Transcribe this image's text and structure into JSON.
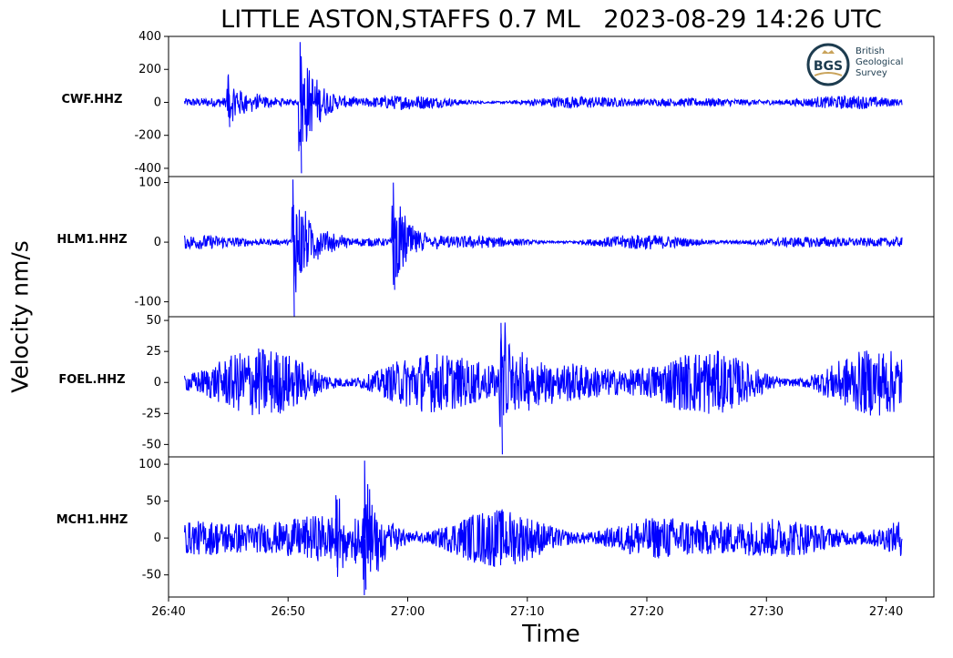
{
  "title": "LITTLE ASTON,STAFFS 0.7 ML   2023-08-29 14:26 UTC",
  "logo": {
    "initials": "BGS",
    "lines": [
      "British",
      "Geological",
      "Survey"
    ]
  },
  "chart_data": [
    {
      "type": "line",
      "channel": "CWF.HHZ",
      "color": "#0000ff",
      "ylim": [
        -450,
        400
      ],
      "yticks": [
        400,
        200,
        0,
        -200,
        -400
      ],
      "noise_amp": 28,
      "events": [
        {
          "t_min": 26.75,
          "peak": 170,
          "neg": -150
        },
        {
          "t_min": 26.85,
          "peak": 365,
          "neg": -430
        }
      ]
    },
    {
      "type": "line",
      "channel": "HLM1.HHZ",
      "color": "#0000ff",
      "ylim": [
        -125,
        110
      ],
      "yticks": [
        100,
        0,
        -100
      ],
      "noise_amp": 8,
      "events": [
        {
          "t_min": 26.84,
          "peak": 105,
          "neg": -125
        },
        {
          "t_min": 26.98,
          "peak": 100,
          "neg": -80
        }
      ]
    },
    {
      "type": "line",
      "channel": "FOEL.HHZ",
      "color": "#0000ff",
      "ylim": [
        -60,
        53
      ],
      "yticks": [
        50,
        25,
        0,
        -25,
        -50
      ],
      "noise_amp": 18,
      "events": [
        {
          "t_min": 27.13,
          "peak": 48,
          "neg": -58
        }
      ]
    },
    {
      "type": "line",
      "channel": "MCH1.HHZ",
      "color": "#0000ff",
      "ylim": [
        -80,
        110
      ],
      "yticks": [
        100,
        50,
        0,
        -50
      ],
      "noise_amp": 25,
      "events": [
        {
          "t_min": 26.9,
          "peak": 58,
          "neg": -40
        },
        {
          "t_min": 26.94,
          "peak": 105,
          "neg": -70
        }
      ]
    }
  ],
  "x_axis": {
    "xlim": [
      26.6667,
      27.7333
    ],
    "start": 26.6889,
    "end": 27.6889,
    "ticks": [
      {
        "value": 26.6667,
        "label": "26:40"
      },
      {
        "value": 26.8333,
        "label": "26:50"
      },
      {
        "value": 27.0,
        "label": "27:00"
      },
      {
        "value": 27.1667,
        "label": "27:10"
      },
      {
        "value": 27.3333,
        "label": "27:20"
      },
      {
        "value": 27.5,
        "label": "27:30"
      },
      {
        "value": 27.6667,
        "label": "27:40"
      }
    ],
    "label": "Time"
  },
  "y_axis_label": "Velocity nm/s",
  "grid": false
}
